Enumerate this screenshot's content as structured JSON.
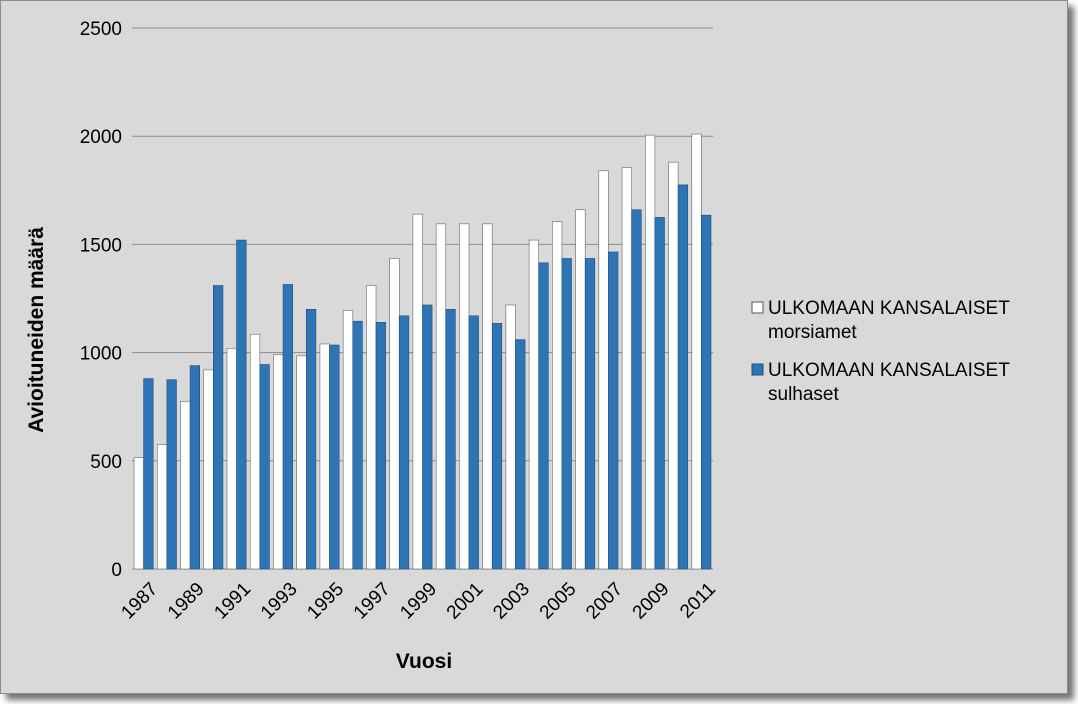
{
  "chart_data": {
    "type": "bar",
    "xlabel": "Vuosi",
    "ylabel": "Avioituneiden määrä",
    "ylim": [
      0,
      2500
    ],
    "yticks": [
      0,
      500,
      1000,
      1500,
      2000,
      2500
    ],
    "grid": true,
    "legend_position": "right",
    "categories": [
      "1987",
      "1988",
      "1989",
      "1990",
      "1991",
      "1992",
      "1993",
      "1994",
      "1995",
      "1996",
      "1997",
      "1998",
      "1999",
      "2000",
      "2001",
      "2002",
      "2003",
      "2004",
      "2005",
      "2006",
      "2007",
      "2008",
      "2009",
      "2010",
      "2011"
    ],
    "x_tick_labels": [
      "1987",
      "1989",
      "1991",
      "1993",
      "1995",
      "1997",
      "1999",
      "2001",
      "2003",
      "2005",
      "2007",
      "2009",
      "2011"
    ],
    "series": [
      {
        "name_line1": "ULKOMAAN KANSALAISET",
        "name_line2": "morsiamet",
        "color": "#ffffff",
        "values": [
          515,
          575,
          775,
          920,
          1020,
          1085,
          990,
          985,
          1040,
          1195,
          1310,
          1435,
          1640,
          1595,
          1595,
          1595,
          1220,
          1520,
          1605,
          1660,
          1840,
          1855,
          2005,
          1880,
          2010
        ]
      },
      {
        "name_line1": "ULKOMAAN KANSALAISET",
        "name_line2": "sulhaset",
        "color": "#2e75b6",
        "values": [
          880,
          875,
          940,
          1310,
          1520,
          945,
          1315,
          1200,
          1035,
          1145,
          1140,
          1170,
          1220,
          1200,
          1170,
          1135,
          1060,
          1415,
          1435,
          1435,
          1465,
          1660,
          1625,
          1775,
          1635
        ]
      }
    ]
  }
}
